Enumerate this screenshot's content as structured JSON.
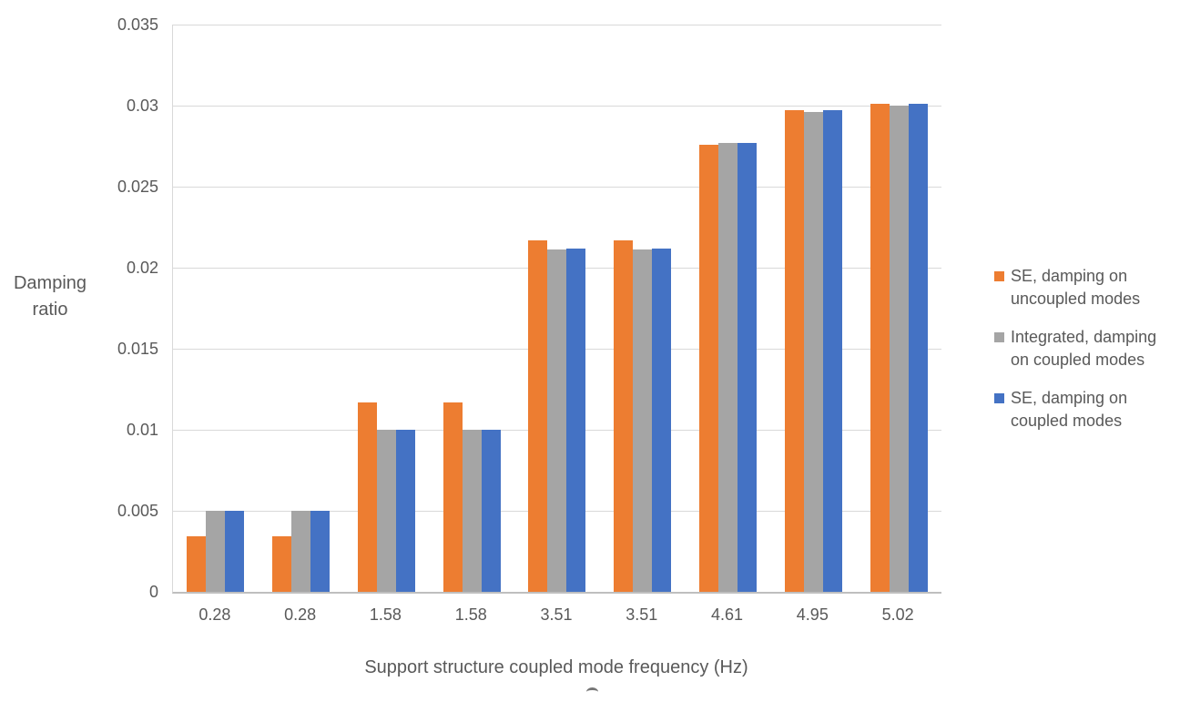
{
  "chart_data": {
    "type": "bar",
    "title": "",
    "xlabel": "Support structure coupled mode frequency (Hz)",
    "ylabel": "Damping ratio",
    "ylim": [
      0,
      0.035
    ],
    "ytick_step": 0.005,
    "yticks": [
      "0",
      "0.005",
      "0.01",
      "0.015",
      "0.02",
      "0.025",
      "0.03",
      "0.035"
    ],
    "categories": [
      "0.28",
      "0.28",
      "1.58",
      "1.58",
      "3.51",
      "3.51",
      "4.61",
      "4.95",
      "5.02"
    ],
    "series": [
      {
        "name": "SE, damping on uncoupled modes",
        "name_lines": [
          "SE, damping on",
          "uncoupled modes"
        ],
        "color": "#ED7D31",
        "values": [
          0.0034,
          0.0034,
          0.0117,
          0.0117,
          0.0217,
          0.0217,
          0.0276,
          0.0297,
          0.0301
        ]
      },
      {
        "name": "Integrated, damping on coupled modes",
        "name_lines": [
          "Integrated, damping",
          "on coupled modes"
        ],
        "color": "#A5A5A5",
        "values": [
          0.005,
          0.005,
          0.01,
          0.01,
          0.0211,
          0.0211,
          0.0277,
          0.0296,
          0.03
        ]
      },
      {
        "name": "SE, damping on coupled modes",
        "name_lines": [
          "SE, damping on",
          "coupled modes"
        ],
        "color": "#4472C4",
        "values": [
          0.005,
          0.005,
          0.01,
          0.01,
          0.0212,
          0.0212,
          0.0277,
          0.0297,
          0.0301
        ]
      }
    ],
    "legend_position": "right",
    "grid": true
  },
  "colors": {
    "gridline": "#D9D9D9",
    "axis_line": "#BFBFBF",
    "text": "#595959"
  }
}
